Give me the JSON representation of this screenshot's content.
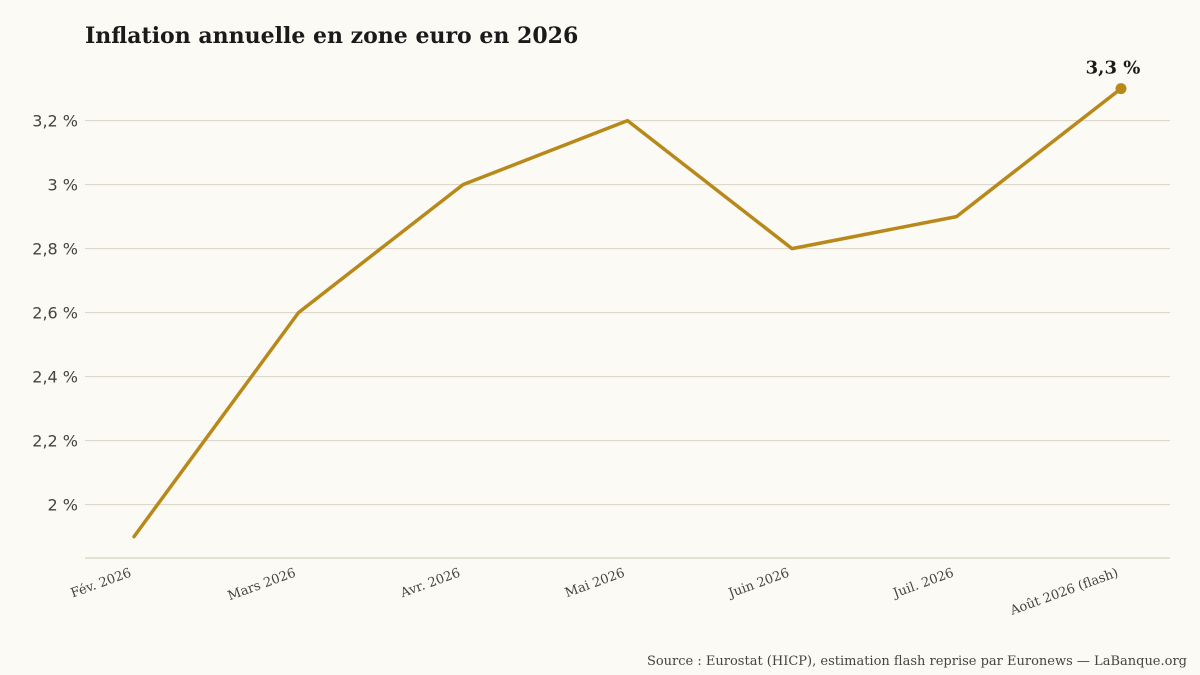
{
  "chart_data": {
    "type": "line",
    "title": "Inflation annuelle en zone euro en 2026",
    "categories": [
      "Fév. 2026",
      "Mars 2026",
      "Avr. 2026",
      "Mai 2026",
      "Juin 2026",
      "Juil. 2026",
      "Août 2026 (flash)"
    ],
    "series": [
      {
        "values": [
          1.9,
          2.6,
          3.0,
          3.2,
          2.8,
          2.9,
          3.3
        ],
        "color": "#b8891a"
      }
    ],
    "yticks": [
      {
        "value": 2.0,
        "label": "2 %"
      },
      {
        "value": 2.2,
        "label": "2,2 %"
      },
      {
        "value": 2.4,
        "label": "2,4 %"
      },
      {
        "value": 2.6,
        "label": "2,6 %"
      },
      {
        "value": 2.8,
        "label": "2,8 %"
      },
      {
        "value": 3.0,
        "label": "3 %"
      },
      {
        "value": 3.2,
        "label": "3,2 %"
      }
    ],
    "ylim": [
      1.83,
      3.42
    ],
    "grid": true,
    "annotation": {
      "category": "Août 2026 (flash)",
      "label": "3,3 %"
    },
    "source": "Source : Eurostat (HICP), estimation flash reprise par Euronews — LaBanque.org"
  }
}
